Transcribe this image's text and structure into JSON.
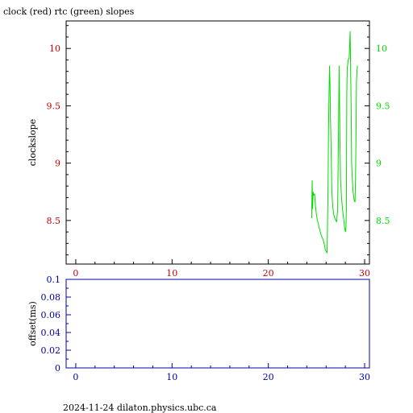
{
  "title": "clock (red) rtc (green) slopes",
  "footer": "2024-11-24 dilaton.physics.ubc.ca",
  "colors": {
    "red": "#cc0000",
    "green": "#00dd00",
    "blue": "#0000aa",
    "frame": "#000000"
  },
  "chart_data": [
    {
      "type": "line",
      "title": "clock (red) rtc (green) slopes",
      "ylabel": "clockslope",
      "xlabel": "",
      "xlim": [
        -1,
        30.5
      ],
      "ylim": [
        8.12,
        10.24
      ],
      "xticks": [
        0,
        10,
        20,
        30
      ],
      "xtick_labels": [
        "0",
        "10",
        "20",
        "30"
      ],
      "yticks_left": [
        8.5,
        9,
        9.5,
        10
      ],
      "ytick_labels_left": [
        "8.5",
        "9",
        "9.5",
        "10"
      ],
      "yticks_right": [
        8.5,
        9,
        9.5,
        10
      ],
      "ytick_labels_right": [
        "8.5",
        "9",
        "9.5",
        "10"
      ],
      "grid": false,
      "series": [
        {
          "color": "#00dd00",
          "x": [
            24.5,
            24.55,
            24.6,
            24.65,
            24.7,
            24.8,
            24.9,
            25.0,
            25.1,
            25.2,
            25.3,
            25.4,
            25.5,
            25.6,
            25.7,
            25.8,
            25.9,
            26.0,
            26.1,
            26.15,
            26.2,
            26.25,
            26.3,
            26.35,
            26.4,
            26.45,
            26.5,
            26.55,
            26.6,
            26.7,
            26.8,
            26.9,
            27.0,
            27.1,
            27.2,
            27.3,
            27.35,
            27.4,
            27.45,
            27.5,
            27.6,
            27.7,
            27.8,
            27.9,
            28.0,
            28.05,
            28.1,
            28.15,
            28.2,
            28.3,
            28.4,
            28.5,
            28.55,
            28.6,
            28.65,
            28.7,
            28.8,
            28.9,
            29.0,
            29.05,
            29.1,
            29.15,
            29.2,
            29.25
          ],
          "y": [
            8.52,
            8.85,
            8.6,
            8.75,
            8.72,
            8.73,
            8.62,
            8.55,
            8.5,
            8.47,
            8.43,
            8.4,
            8.37,
            8.35,
            8.33,
            8.3,
            8.25,
            8.23,
            8.22,
            8.5,
            8.8,
            9.3,
            9.6,
            9.85,
            9.7,
            9.4,
            9.2,
            8.95,
            8.75,
            8.62,
            8.55,
            8.52,
            8.5,
            8.49,
            8.6,
            9.4,
            9.85,
            9.5,
            9.1,
            8.85,
            8.7,
            8.6,
            8.53,
            8.45,
            8.4,
            8.42,
            8.6,
            9.6,
            9.83,
            9.9,
            9.92,
            10.15,
            9.8,
            9.5,
            9.0,
            8.9,
            8.75,
            8.68,
            8.66,
            8.85,
            9.2,
            9.7,
            9.8,
            9.85
          ]
        }
      ]
    },
    {
      "type": "line",
      "title": "",
      "ylabel": "offset(ms)",
      "xlabel": "",
      "xlim": [
        -1,
        30.5
      ],
      "ylim": [
        0,
        0.1
      ],
      "xticks": [
        0,
        10,
        20,
        30
      ],
      "xtick_labels": [
        "0",
        "10",
        "20",
        "30"
      ],
      "yticks": [
        0,
        0.02,
        0.04,
        0.06,
        0.08,
        0.1
      ],
      "ytick_labels": [
        "0",
        "0.02",
        "0.04",
        "0.06",
        "0.08",
        "0.1"
      ],
      "grid": false,
      "series": []
    }
  ]
}
